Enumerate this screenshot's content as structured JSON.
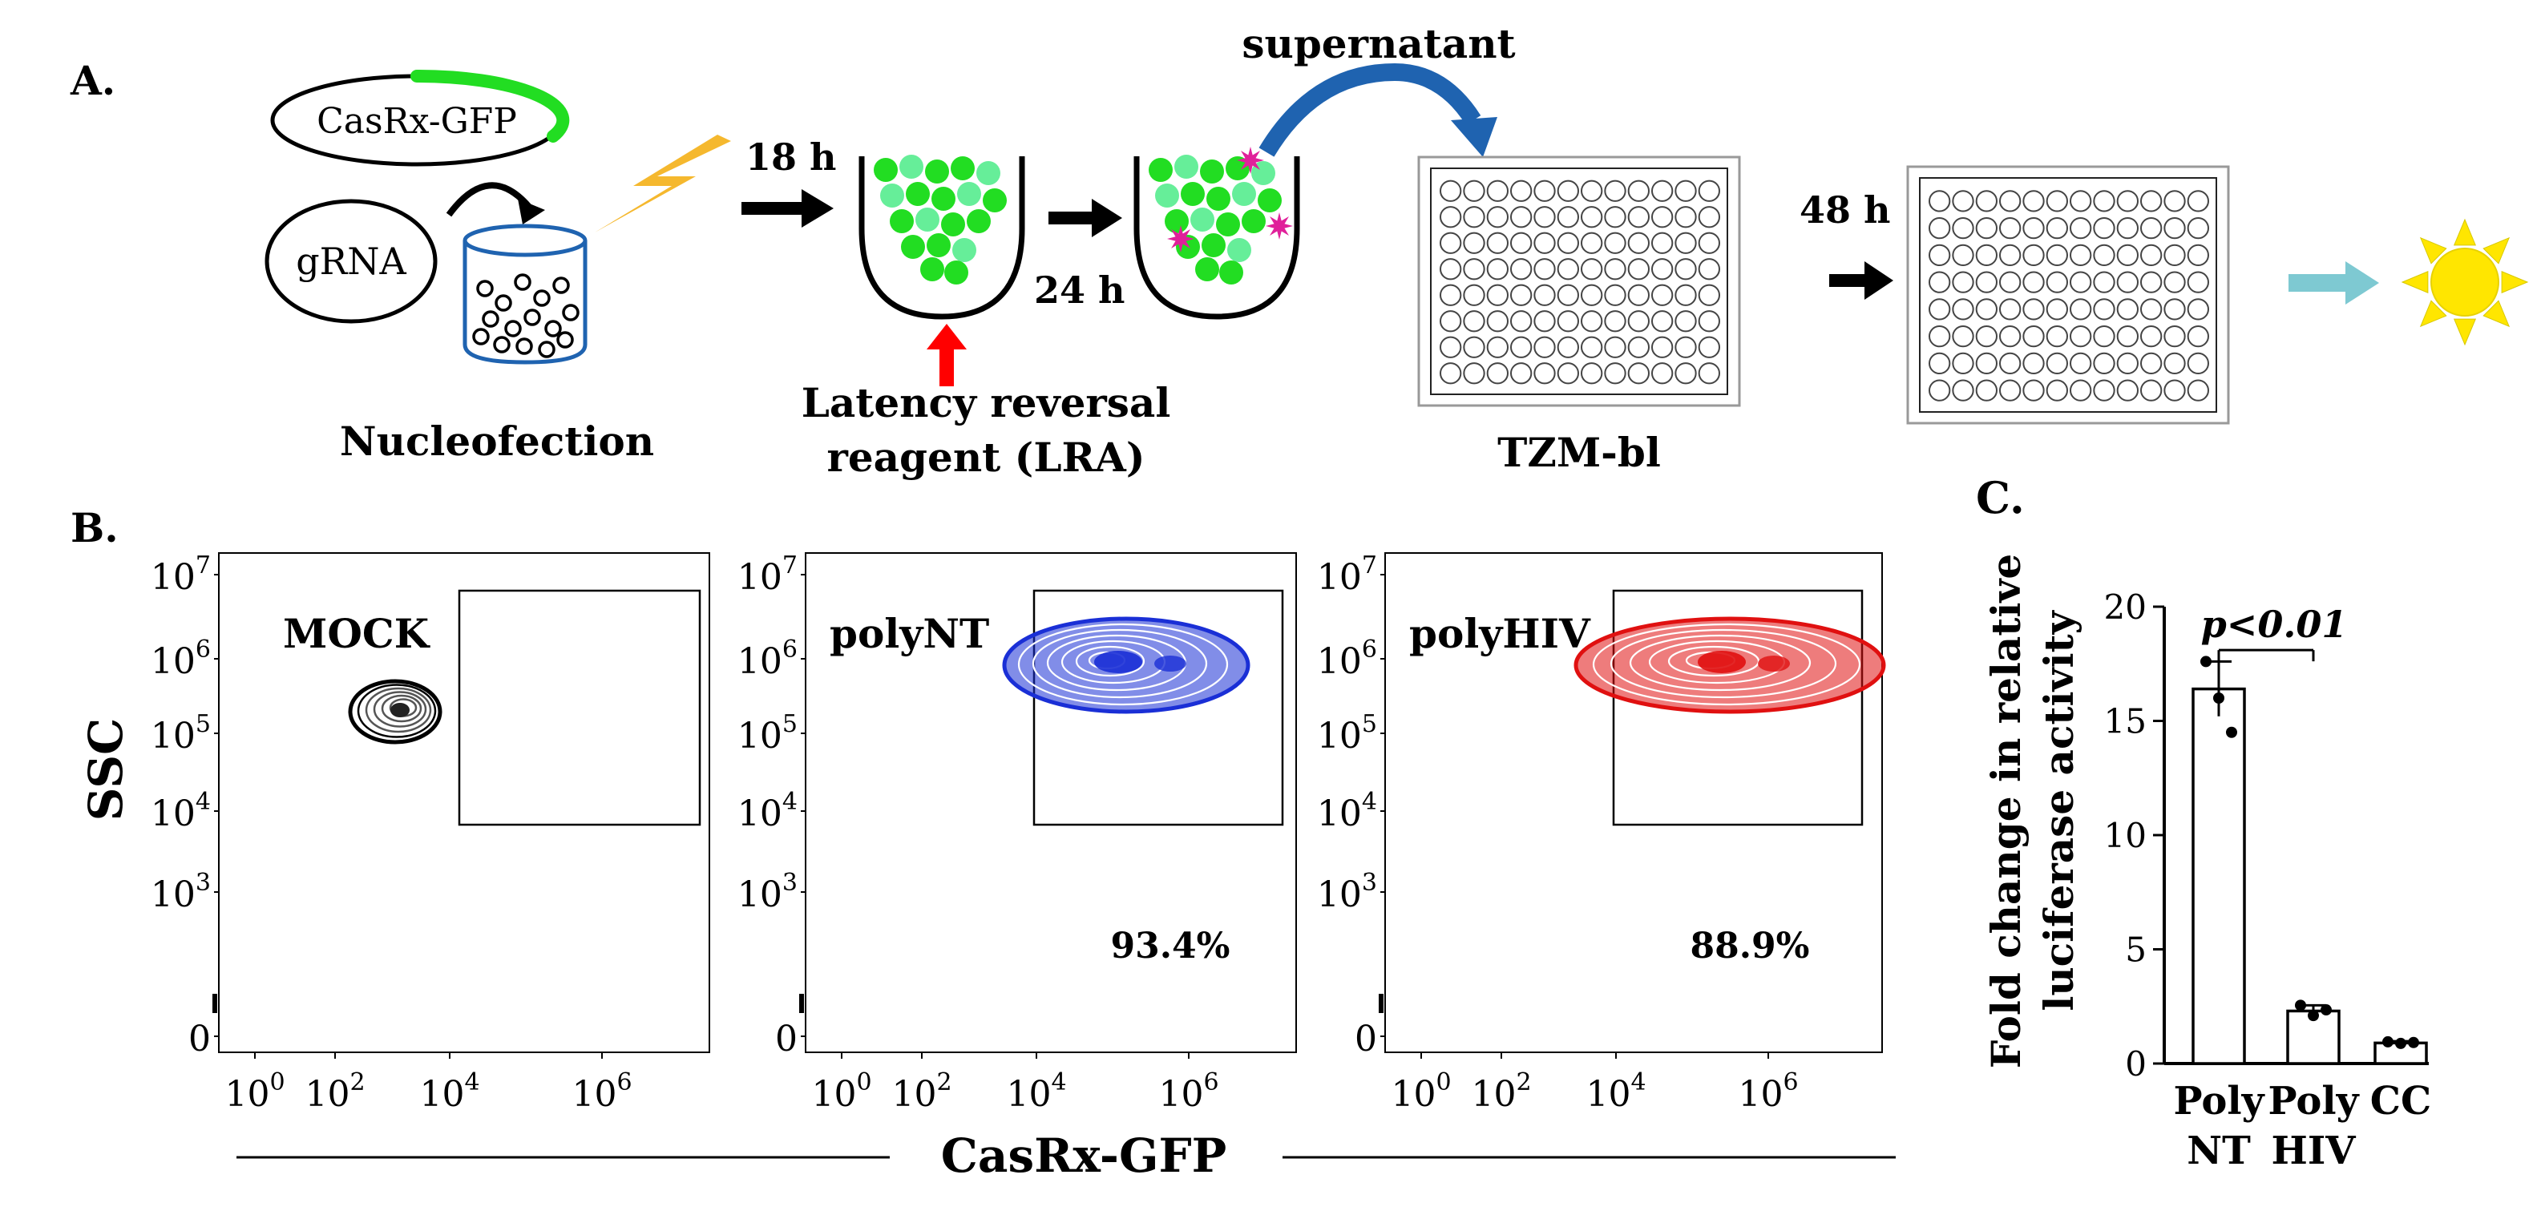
{
  "panel_a": {
    "label": "A.",
    "plasmid_label": "CasRx-GFP",
    "grna_label": "gRNA",
    "nucleofection_label": "Nucleofection",
    "time_1": "18 h",
    "time_2": "24 h",
    "lra_line1": "Latency reversal",
    "lra_line2": "reagent (LRA)",
    "supernatant_label": "supernatant",
    "tzm_label": "TZM-bl",
    "time_3": "48 h",
    "colors": {
      "gfp_green": "#22dd22",
      "gfp_light": "#66ee99",
      "lra_arrow": "#ff0000",
      "virion": "#e0209a",
      "transfer_arrow": "#1f63b0",
      "lightning": "#f5b82e",
      "readout_arrow": "#7ec9d2",
      "sun": "#ffe600"
    }
  },
  "panel_b": {
    "label": "B.",
    "y_axis_label": "SSC",
    "x_axis_label": "CasRx-GFP",
    "y_ticks": [
      {
        "base": "10",
        "exp": "7"
      },
      {
        "base": "10",
        "exp": "6"
      },
      {
        "base": "10",
        "exp": "5"
      },
      {
        "base": "10",
        "exp": "4"
      },
      {
        "base": "10",
        "exp": "3"
      },
      {
        "base": "0",
        "exp": ""
      }
    ],
    "x_ticks": [
      {
        "base": "10",
        "exp": "0"
      },
      {
        "base": "10",
        "exp": "2"
      },
      {
        "base": "10",
        "exp": "4"
      },
      {
        "base": "10",
        "exp": "6"
      }
    ],
    "plots": [
      {
        "name": "MOCK",
        "percent": "",
        "color": "#000000"
      },
      {
        "name": "polyNT",
        "percent": "93.4%",
        "color": "#1a2fd6"
      },
      {
        "name": "polyHIV",
        "percent": "88.9%",
        "color": "#e01010"
      }
    ]
  },
  "panel_c": {
    "label": "C.",
    "chart_data": {
      "type": "bar",
      "categories": [
        "Poly NT",
        "Poly HIV",
        "CC"
      ],
      "category_lines": [
        [
          "Poly",
          "NT"
        ],
        [
          "Poly",
          "HIV"
        ],
        [
          "CC"
        ]
      ],
      "values": [
        16.4,
        2.3,
        0.9
      ],
      "errors": [
        1.2,
        0.25,
        0.08
      ],
      "points": [
        [
          17.6,
          16.0,
          14.5
        ],
        [
          2.55,
          2.1,
          2.35
        ],
        [
          0.95,
          0.88,
          0.92
        ]
      ],
      "ylabel_line1": "Fold change in relative",
      "ylabel_line2": "luciferase activity",
      "ylim": [
        0,
        20
      ],
      "yticks": [
        0,
        5,
        10,
        15,
        20
      ],
      "significance": "p<0.01",
      "bar_color": "#ffffff",
      "edge_color": "#000000"
    }
  }
}
